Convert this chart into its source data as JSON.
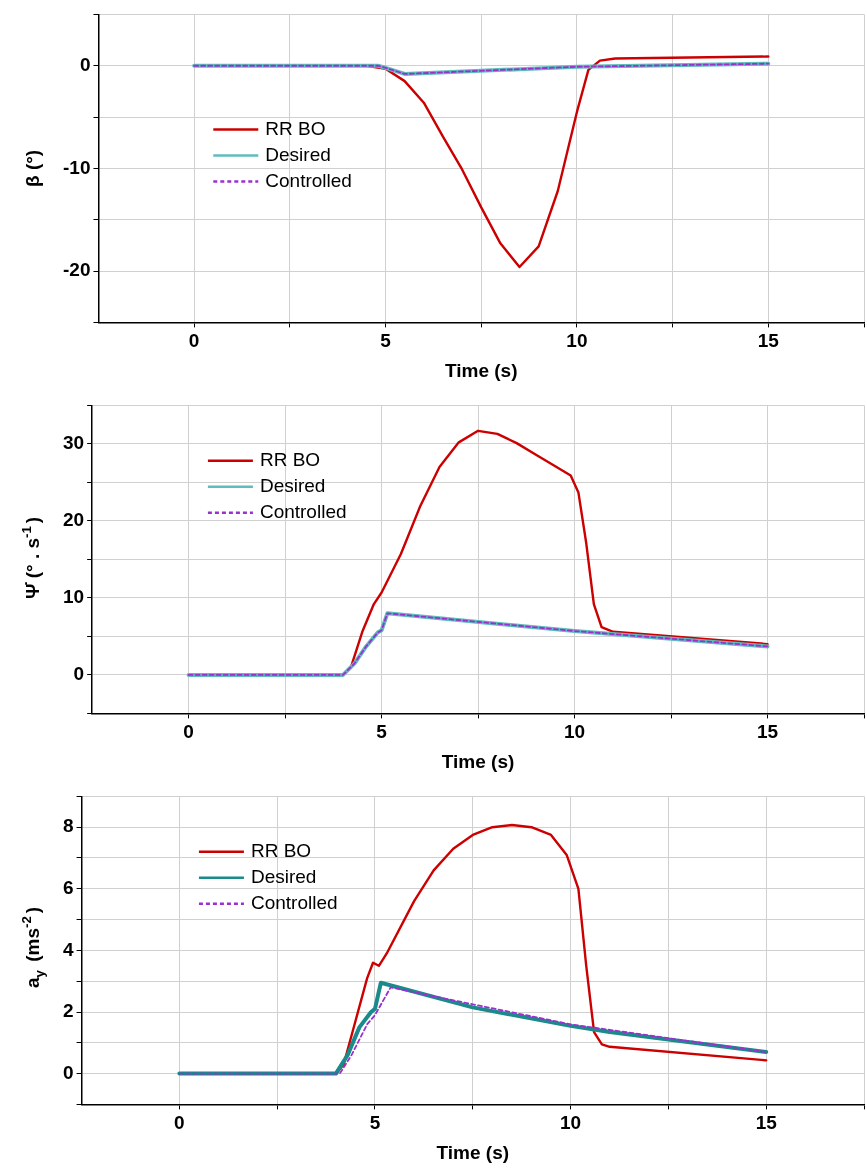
{
  "chart_data": [
    {
      "type": "line",
      "xlabel": "Time (s)",
      "ylabel": "β (°)",
      "xlim": [
        -2.5,
        17.5
      ],
      "xticks": [
        0,
        {
          "value": 2.5,
          "label": null
        },
        5,
        {
          "value": 7.5,
          "label": null
        },
        10,
        {
          "value": 12.5,
          "label": null
        },
        15,
        {
          "value": 17.5,
          "label": null
        }
      ],
      "ylim": [
        -25,
        5
      ],
      "yticks": [
        {
          "value": -25,
          "label": null
        },
        -20,
        {
          "value": -15,
          "label": null
        },
        -10,
        {
          "value": -5,
          "label": null
        },
        0,
        {
          "value": 5,
          "label": null
        }
      ],
      "grid": true,
      "legend": "left",
      "marker": "none",
      "series": [
        {
          "name": "RR BO",
          "color": "#cc0000",
          "line_style": "solid",
          "x": [
            0,
            4.5,
            5,
            5.5,
            6,
            6.5,
            7,
            7.5,
            8,
            8.5,
            9,
            9.5,
            10,
            10.3,
            10.6,
            11,
            15
          ],
          "values": [
            0,
            0,
            -0.3,
            -1.5,
            -3.6,
            -6.9,
            -10.1,
            -13.8,
            -17.3,
            -19.6,
            -17.6,
            -12.2,
            -4.5,
            -0.4,
            0.5,
            0.7,
            0.9
          ]
        },
        {
          "name": "Desired",
          "color": "#5fbcbc",
          "line_style": "solid",
          "x": [
            0,
            4.8,
            5,
            5.5,
            10,
            15
          ],
          "values": [
            0,
            0,
            -0.2,
            -0.8,
            -0.1,
            0.2
          ]
        },
        {
          "name": "Controlled",
          "color": "#9b30d0",
          "line_style": "dashed",
          "x": [
            0,
            4.8,
            5,
            5.5,
            10,
            15
          ],
          "values": [
            0,
            0,
            -0.2,
            -0.8,
            -0.1,
            0.2
          ]
        }
      ]
    },
    {
      "type": "line",
      "xlabel": "Time (s)",
      "ylabel": "Ψ̇ (° . s$^{-1}$)",
      "xlim": [
        -2.5,
        17.5
      ],
      "xticks": [
        0,
        {
          "value": 2.5,
          "label": null
        },
        5,
        {
          "value": 7.5,
          "label": null
        },
        10,
        {
          "value": 12.5,
          "label": null
        },
        15,
        {
          "value": 17.5,
          "label": null
        }
      ],
      "ylim": [
        -5,
        35
      ],
      "yticks": [
        {
          "value": -5,
          "label": null
        },
        0,
        {
          "value": 5,
          "label": null
        },
        10,
        {
          "value": 15,
          "label": null
        },
        20,
        {
          "value": 25,
          "label": null
        },
        30,
        {
          "value": 35,
          "label": null
        }
      ],
      "grid": true,
      "legend": "top left",
      "marker": "none",
      "series": [
        {
          "name": "RR BO",
          "color": "#cc0000",
          "line_style": "solid",
          "x": [
            0,
            4,
            4.2,
            4.5,
            4.8,
            5,
            5.5,
            6,
            6.5,
            7,
            7.5,
            8,
            8.5,
            9,
            9.5,
            9.9,
            10.1,
            10.3,
            10.5,
            10.7,
            11,
            15
          ],
          "values": [
            0,
            0,
            0.9,
            5.6,
            9.2,
            10.7,
            15.7,
            21.9,
            27,
            30.2,
            31.7,
            31.3,
            30.1,
            28.6,
            27.1,
            25.9,
            23.7,
            17.2,
            9.2,
            6.2,
            5.6,
            4
          ]
        },
        {
          "name": "Desired",
          "color": "#5fbcbc",
          "line_style": "solid",
          "x": [
            0,
            4,
            4.3,
            4.6,
            4.9,
            5,
            5.15,
            10,
            15
          ],
          "values": [
            0,
            0,
            1.5,
            3.7,
            5.5,
            5.8,
            8,
            5.7,
            3.7
          ]
        },
        {
          "name": "Controlled",
          "color": "#9b30d0",
          "line_style": "dashed",
          "x": [
            0,
            4,
            4.3,
            4.6,
            4.9,
            5,
            5.15,
            10,
            15
          ],
          "values": [
            0,
            0,
            1.5,
            3.7,
            5.5,
            5.8,
            8,
            5.7,
            3.7
          ]
        }
      ]
    },
    {
      "type": "line",
      "xlabel": "Time (s)",
      "ylabel": "a$_{y}$ (ms$^{-2}$)",
      "xlim": [
        -2.5,
        17.5
      ],
      "xticks": [
        0,
        {
          "value": 2.5,
          "label": null
        },
        5,
        {
          "value": 7.5,
          "label": null
        },
        10,
        {
          "value": 12.5,
          "label": null
        },
        15,
        {
          "value": 17.5,
          "label": null
        }
      ],
      "ylim": [
        -1,
        9
      ],
      "yticks": [
        {
          "value": -1,
          "label": null
        },
        0,
        {
          "value": 1,
          "label": null
        },
        2,
        {
          "value": 3,
          "label": null
        },
        4,
        {
          "value": 5,
          "label": null
        },
        6,
        {
          "value": 7,
          "label": null
        },
        8,
        {
          "value": 9,
          "label": null
        }
      ],
      "grid": true,
      "legend": "top left",
      "marker": "none",
      "series": [
        {
          "name": "RR BO",
          "color": "#cc0000",
          "line_style": "solid",
          "x": [
            0,
            4,
            4.2,
            4.5,
            4.8,
            4.95,
            5.1,
            5.3,
            6,
            6.5,
            7,
            7.5,
            8,
            8.5,
            9,
            9.5,
            9.9,
            10.2,
            10.4,
            10.6,
            10.8,
            11,
            15
          ],
          "values": [
            0,
            0,
            0.3,
            1.7,
            3.1,
            3.6,
            3.5,
            3.9,
            5.6,
            6.6,
            7.3,
            7.75,
            8,
            8.07,
            8,
            7.75,
            7.1,
            6,
            3.5,
            1.35,
            0.95,
            0.87,
            0.43
          ]
        },
        {
          "name": "Desired",
          "color": "#1a8a8a",
          "line_style": "solid",
          "x": [
            0,
            4,
            4.3,
            4.6,
            4.9,
            5,
            5.15,
            7.5,
            10,
            11,
            15
          ],
          "values": [
            0,
            0,
            0.6,
            1.5,
            2,
            2.1,
            2.95,
            2.15,
            1.55,
            1.35,
            0.7
          ]
        },
        {
          "name": "Controlled",
          "color": "#9b30d0",
          "line_style": "dashed",
          "x": [
            0,
            4.1,
            4.4,
            4.8,
            5,
            5.2,
            5.4,
            7.5,
            10,
            15
          ],
          "values": [
            0,
            0,
            0.6,
            1.6,
            1.9,
            2.35,
            2.8,
            2.25,
            1.6,
            0.7
          ]
        }
      ]
    }
  ]
}
